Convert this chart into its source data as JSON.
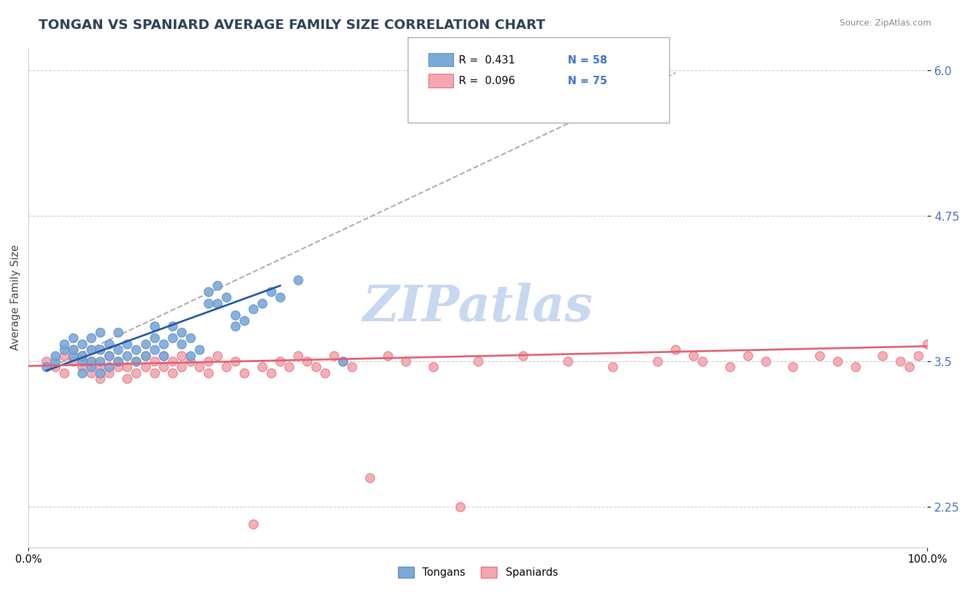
{
  "title": "TONGAN VS SPANIARD AVERAGE FAMILY SIZE CORRELATION CHART",
  "source_text": "Source: ZipAtlas.com",
  "ylabel": "Average Family Size",
  "xlabel": "",
  "x_min": 0.0,
  "x_max": 1.0,
  "y_min": 1.9,
  "y_max": 6.2,
  "y_ticks": [
    2.25,
    3.5,
    4.75,
    6.0
  ],
  "x_ticks": [
    0.0,
    1.0
  ],
  "x_tick_labels": [
    "0.0%",
    "100.0%"
  ],
  "title_color": "#2E4057",
  "title_fontsize": 14,
  "right_tick_color": "#4472C4",
  "tongan_color": "#7DA9D8",
  "tongan_edge": "#5A8EC4",
  "spaniard_color": "#F4A7B0",
  "spaniard_edge": "#E07080",
  "trend_tongan_color": "#2255AA",
  "trend_spaniard_color": "#E06070",
  "ref_line_color": "#AAAAAA",
  "legend_R_tongan": "R =  0.431",
  "legend_N_tongan": "N = 58",
  "legend_R_spaniard": "R =  0.096",
  "legend_N_spaniard": "N = 75",
  "watermark_text": "ZIPatlas",
  "watermark_color": "#C8D8F0",
  "background_color": "#FFFFFF",
  "tongan_x": [
    0.02,
    0.03,
    0.03,
    0.04,
    0.04,
    0.05,
    0.05,
    0.05,
    0.06,
    0.06,
    0.06,
    0.06,
    0.07,
    0.07,
    0.07,
    0.07,
    0.08,
    0.08,
    0.08,
    0.08,
    0.09,
    0.09,
    0.09,
    0.1,
    0.1,
    0.1,
    0.11,
    0.11,
    0.12,
    0.12,
    0.13,
    0.13,
    0.14,
    0.14,
    0.14,
    0.15,
    0.15,
    0.16,
    0.16,
    0.17,
    0.17,
    0.18,
    0.18,
    0.19,
    0.2,
    0.2,
    0.21,
    0.21,
    0.22,
    0.23,
    0.23,
    0.24,
    0.25,
    0.26,
    0.27,
    0.28,
    0.3,
    0.35
  ],
  "tongan_y": [
    3.45,
    3.5,
    3.55,
    3.6,
    3.65,
    3.55,
    3.6,
    3.7,
    3.4,
    3.5,
    3.55,
    3.65,
    3.45,
    3.5,
    3.6,
    3.7,
    3.4,
    3.5,
    3.6,
    3.75,
    3.45,
    3.55,
    3.65,
    3.5,
    3.6,
    3.75,
    3.55,
    3.65,
    3.5,
    3.6,
    3.55,
    3.65,
    3.6,
    3.7,
    3.8,
    3.55,
    3.65,
    3.7,
    3.8,
    3.65,
    3.75,
    3.55,
    3.7,
    3.6,
    4.0,
    4.1,
    4.0,
    4.15,
    4.05,
    3.8,
    3.9,
    3.85,
    3.95,
    4.0,
    4.1,
    4.05,
    4.2,
    3.5
  ],
  "spaniard_x": [
    0.02,
    0.03,
    0.04,
    0.04,
    0.05,
    0.05,
    0.06,
    0.06,
    0.07,
    0.07,
    0.08,
    0.08,
    0.09,
    0.09,
    0.1,
    0.1,
    0.11,
    0.11,
    0.12,
    0.12,
    0.13,
    0.13,
    0.14,
    0.14,
    0.15,
    0.15,
    0.16,
    0.16,
    0.17,
    0.17,
    0.18,
    0.19,
    0.2,
    0.2,
    0.21,
    0.22,
    0.23,
    0.24,
    0.25,
    0.26,
    0.27,
    0.28,
    0.29,
    0.3,
    0.31,
    0.32,
    0.33,
    0.34,
    0.35,
    0.36,
    0.38,
    0.4,
    0.42,
    0.45,
    0.48,
    0.5,
    0.55,
    0.6,
    0.65,
    0.7,
    0.72,
    0.74,
    0.75,
    0.78,
    0.8,
    0.82,
    0.85,
    0.88,
    0.9,
    0.92,
    0.95,
    0.97,
    0.98,
    0.99,
    1.0
  ],
  "spaniard_y": [
    3.5,
    3.45,
    3.55,
    3.4,
    3.5,
    3.6,
    3.45,
    3.55,
    3.4,
    3.5,
    3.35,
    3.45,
    3.4,
    3.55,
    3.45,
    3.5,
    3.35,
    3.45,
    3.4,
    3.5,
    3.45,
    3.55,
    3.4,
    3.5,
    3.45,
    3.55,
    3.4,
    3.5,
    3.45,
    3.55,
    3.5,
    3.45,
    3.5,
    3.4,
    3.55,
    3.45,
    3.5,
    3.4,
    2.1,
    3.45,
    3.4,
    3.5,
    3.45,
    3.55,
    3.5,
    3.45,
    3.4,
    3.55,
    3.5,
    3.45,
    2.5,
    3.55,
    3.5,
    3.45,
    2.25,
    3.5,
    3.55,
    3.5,
    3.45,
    3.5,
    3.6,
    3.55,
    3.5,
    3.45,
    3.55,
    3.5,
    3.45,
    3.55,
    3.5,
    3.45,
    3.55,
    3.5,
    3.45,
    3.55,
    3.65
  ],
  "tongan_trend_x": [
    0.02,
    0.28
  ],
  "tongan_trend_y": [
    3.42,
    4.15
  ],
  "spaniard_trend_x": [
    0.0,
    1.0
  ],
  "spaniard_trend_y": [
    3.46,
    3.63
  ],
  "ref_line_x": [
    0.02,
    0.72
  ],
  "ref_line_y": [
    3.43,
    5.98
  ]
}
